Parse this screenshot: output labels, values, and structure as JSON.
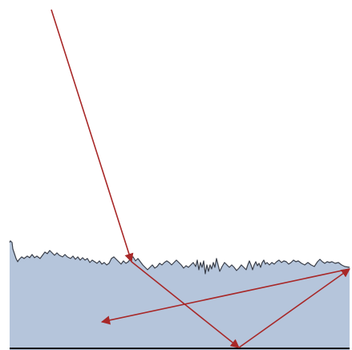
{
  "diagram": {
    "background_color": "#ffffff",
    "medium_fill_color": "#b5c5db",
    "surface_line_color": "#3a3f4a",
    "ray_color": "#a82828",
    "bottom_boundary_color": "#000000"
  }
}
